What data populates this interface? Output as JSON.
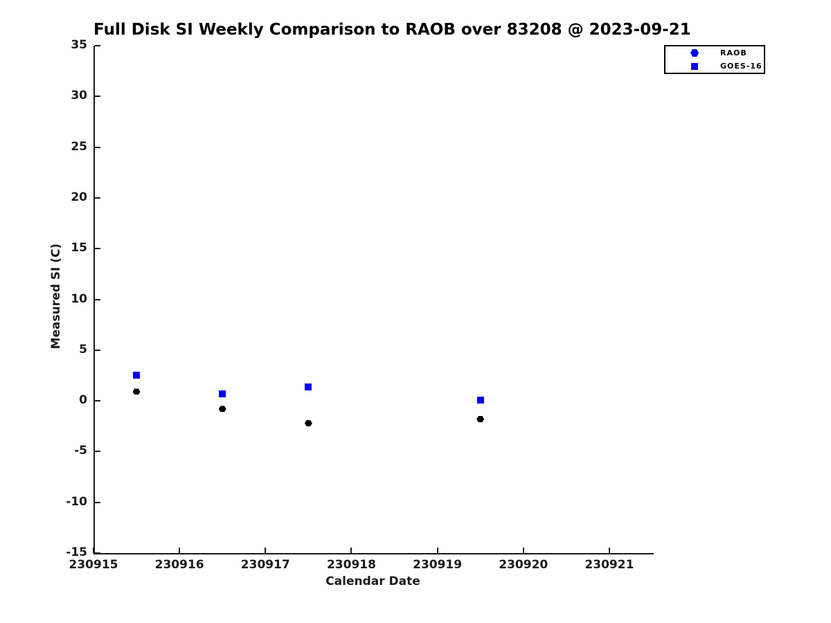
{
  "title": "Full Disk SI Weekly Comparison to RAOB over 83208 @ 2023-09-21",
  "colors": {
    "series_blue": "#0000ee",
    "raob_marker_black": "#000000",
    "axis_text": "#1a1a1a",
    "background": "#ffffff"
  },
  "chart_data": {
    "type": "scatter",
    "title": "Full Disk SI Weekly Comparison to RAOB over 83208 @ 2023-09-21",
    "xlabel": "Calendar Date",
    "ylabel": "Measured SI (C)",
    "xlim": [
      230915,
      230921.5
    ],
    "ylim": [
      -15,
      35
    ],
    "x_ticks": [
      230915,
      230916,
      230917,
      230918,
      230919,
      230920,
      230921
    ],
    "y_ticks": [
      -15,
      -10,
      -5,
      0,
      5,
      10,
      15,
      20,
      25,
      30,
      35
    ],
    "grid": false,
    "legend_position": "top-right",
    "series": [
      {
        "name": "RAOB",
        "marker": "hexagon",
        "point_color": "#000000",
        "legend_marker_color": "#0000ee",
        "x": [
          230915.5,
          230916.5,
          230917.5,
          230919.5
        ],
        "y": [
          0.9,
          -0.8,
          -2.2,
          -1.8
        ]
      },
      {
        "name": "GOES-16",
        "marker": "square",
        "point_color": "#0000ee",
        "legend_marker_color": "#0000ee",
        "x": [
          230915.5,
          230916.5,
          230917.5,
          230919.5
        ],
        "y": [
          2.5,
          0.7,
          1.4,
          0.1
        ]
      }
    ]
  }
}
